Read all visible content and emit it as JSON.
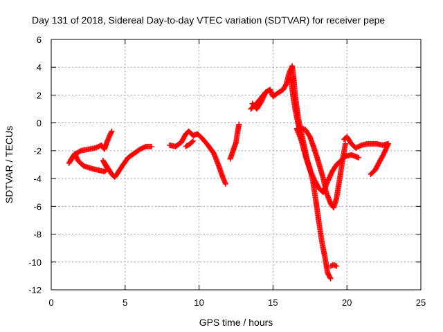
{
  "chart_data": {
    "type": "scatter",
    "title": "Day 131 of 2018, Sidereal Day-to-day VTEC variation (SDTVAR) for receiver pepe",
    "xlabel": "GPS time / hours",
    "ylabel": "SDTVAR / TECUs",
    "xlim": [
      0,
      25
    ],
    "ylim": [
      -12,
      6
    ],
    "x_ticks": [
      0,
      5,
      10,
      15,
      20,
      25
    ],
    "y_ticks": [
      -12,
      -10,
      -8,
      -6,
      -4,
      -2,
      0,
      2,
      4,
      6
    ],
    "grid": true,
    "marker": "+",
    "color": "#ff0000",
    "segments": [
      [
        [
          1.2,
          -2.9
        ],
        [
          1.5,
          -2.4
        ],
        [
          1.7,
          -2.2
        ],
        [
          2.0,
          -2.0
        ],
        [
          2.5,
          -1.9
        ],
        [
          3.0,
          -1.8
        ],
        [
          3.4,
          -1.6
        ],
        [
          3.6,
          -1.9
        ],
        [
          3.8,
          -1.3
        ],
        [
          4.0,
          -0.8
        ],
        [
          4.1,
          -0.6
        ]
      ],
      [
        [
          1.3,
          -2.7
        ],
        [
          1.6,
          -2.2
        ],
        [
          1.8,
          -2.7
        ],
        [
          2.2,
          -3.1
        ],
        [
          2.8,
          -3.3
        ],
        [
          3.2,
          -3.4
        ],
        [
          3.6,
          -3.5
        ],
        [
          3.8,
          -3.3
        ],
        [
          3.5,
          -2.7
        ],
        [
          3.8,
          -3.2
        ],
        [
          4.1,
          -3.7
        ],
        [
          4.3,
          -3.9
        ],
        [
          4.5,
          -3.6
        ],
        [
          4.8,
          -3.1
        ],
        [
          5.2,
          -2.5
        ],
        [
          5.6,
          -2.2
        ],
        [
          6.0,
          -1.9
        ],
        [
          6.4,
          -1.7
        ],
        [
          6.8,
          -1.7
        ]
      ],
      [
        [
          8.0,
          -1.6
        ],
        [
          8.4,
          -1.7
        ],
        [
          8.8,
          -1.4
        ],
        [
          9.1,
          -0.8
        ],
        [
          9.3,
          -0.6
        ],
        [
          9.6,
          -0.9
        ],
        [
          9.9,
          -0.8
        ],
        [
          10.2,
          -1.1
        ],
        [
          10.6,
          -1.6
        ],
        [
          11.0,
          -2.2
        ],
        [
          11.3,
          -3.0
        ],
        [
          11.6,
          -3.9
        ],
        [
          11.8,
          -4.4
        ]
      ],
      [
        [
          9.1,
          -1.7
        ],
        [
          9.4,
          -1.5
        ],
        [
          9.6,
          -1.3
        ]
      ],
      [
        [
          12.1,
          -2.6
        ],
        [
          12.3,
          -2.0
        ],
        [
          12.5,
          -1.4
        ],
        [
          12.6,
          -0.7
        ],
        [
          12.7,
          -0.1
        ]
      ],
      [
        [
          13.5,
          1.0
        ],
        [
          13.8,
          1.3
        ],
        [
          14.2,
          1.8
        ],
        [
          14.5,
          2.2
        ],
        [
          14.8,
          2.4
        ],
        [
          15.0,
          1.9
        ],
        [
          15.4,
          2.2
        ],
        [
          15.7,
          2.4
        ],
        [
          15.9,
          2.8
        ],
        [
          16.1,
          3.6
        ],
        [
          16.3,
          4.1
        ],
        [
          16.4,
          3.2
        ],
        [
          16.5,
          2.0
        ],
        [
          16.6,
          1.2
        ],
        [
          16.7,
          0.4
        ],
        [
          16.9,
          -0.6
        ],
        [
          17.1,
          -1.6
        ],
        [
          17.3,
          -2.6
        ],
        [
          17.5,
          -3.3
        ],
        [
          17.7,
          -4.2
        ],
        [
          17.9,
          -5.6
        ],
        [
          18.1,
          -7.1
        ],
        [
          18.3,
          -8.5
        ],
        [
          18.5,
          -9.6
        ],
        [
          18.7,
          -10.8
        ],
        [
          18.9,
          -11.2
        ]
      ],
      [
        [
          13.6,
          1.4
        ],
        [
          13.9,
          1.0
        ],
        [
          14.2,
          1.5
        ],
        [
          14.5,
          2.2
        ]
      ],
      [
        [
          16.2,
          3.2
        ],
        [
          16.4,
          1.6
        ],
        [
          16.6,
          0.4
        ],
        [
          16.8,
          -0.5
        ],
        [
          17.0,
          -0.4
        ],
        [
          17.2,
          -0.5
        ],
        [
          17.5,
          -1.0
        ],
        [
          17.8,
          -1.9
        ],
        [
          18.1,
          -2.9
        ],
        [
          18.4,
          -4.0
        ],
        [
          18.6,
          -5.0
        ],
        [
          18.9,
          -5.8
        ],
        [
          19.1,
          -6.1
        ],
        [
          19.3,
          -5.4
        ],
        [
          19.5,
          -4.1
        ],
        [
          19.7,
          -2.7
        ],
        [
          19.9,
          -1.5
        ]
      ],
      [
        [
          16.6,
          -0.4
        ],
        [
          16.9,
          -1.2
        ],
        [
          17.2,
          -2.4
        ],
        [
          17.5,
          -3.4
        ],
        [
          17.8,
          -4.1
        ],
        [
          18.1,
          -4.7
        ],
        [
          18.4,
          -5.0
        ],
        [
          18.7,
          -4.2
        ],
        [
          19.0,
          -3.5
        ],
        [
          19.3,
          -3.0
        ],
        [
          19.6,
          -2.7
        ],
        [
          19.9,
          -2.4
        ],
        [
          20.3,
          -2.3
        ],
        [
          20.8,
          -2.5
        ]
      ],
      [
        [
          19.8,
          -1.2
        ],
        [
          20.0,
          -1.0
        ],
        [
          20.3,
          -1.5
        ],
        [
          20.6,
          -1.8
        ],
        [
          21.0,
          -1.6
        ],
        [
          21.4,
          -1.5
        ],
        [
          22.0,
          -1.5
        ],
        [
          22.4,
          -1.6
        ],
        [
          22.8,
          -1.5
        ]
      ],
      [
        [
          18.9,
          -10.3
        ],
        [
          19.1,
          -10.2
        ],
        [
          19.3,
          -10.3
        ]
      ],
      [
        [
          21.6,
          -3.7
        ],
        [
          21.9,
          -3.4
        ],
        [
          22.2,
          -2.8
        ],
        [
          22.5,
          -2.2
        ],
        [
          22.8,
          -1.5
        ]
      ]
    ]
  }
}
